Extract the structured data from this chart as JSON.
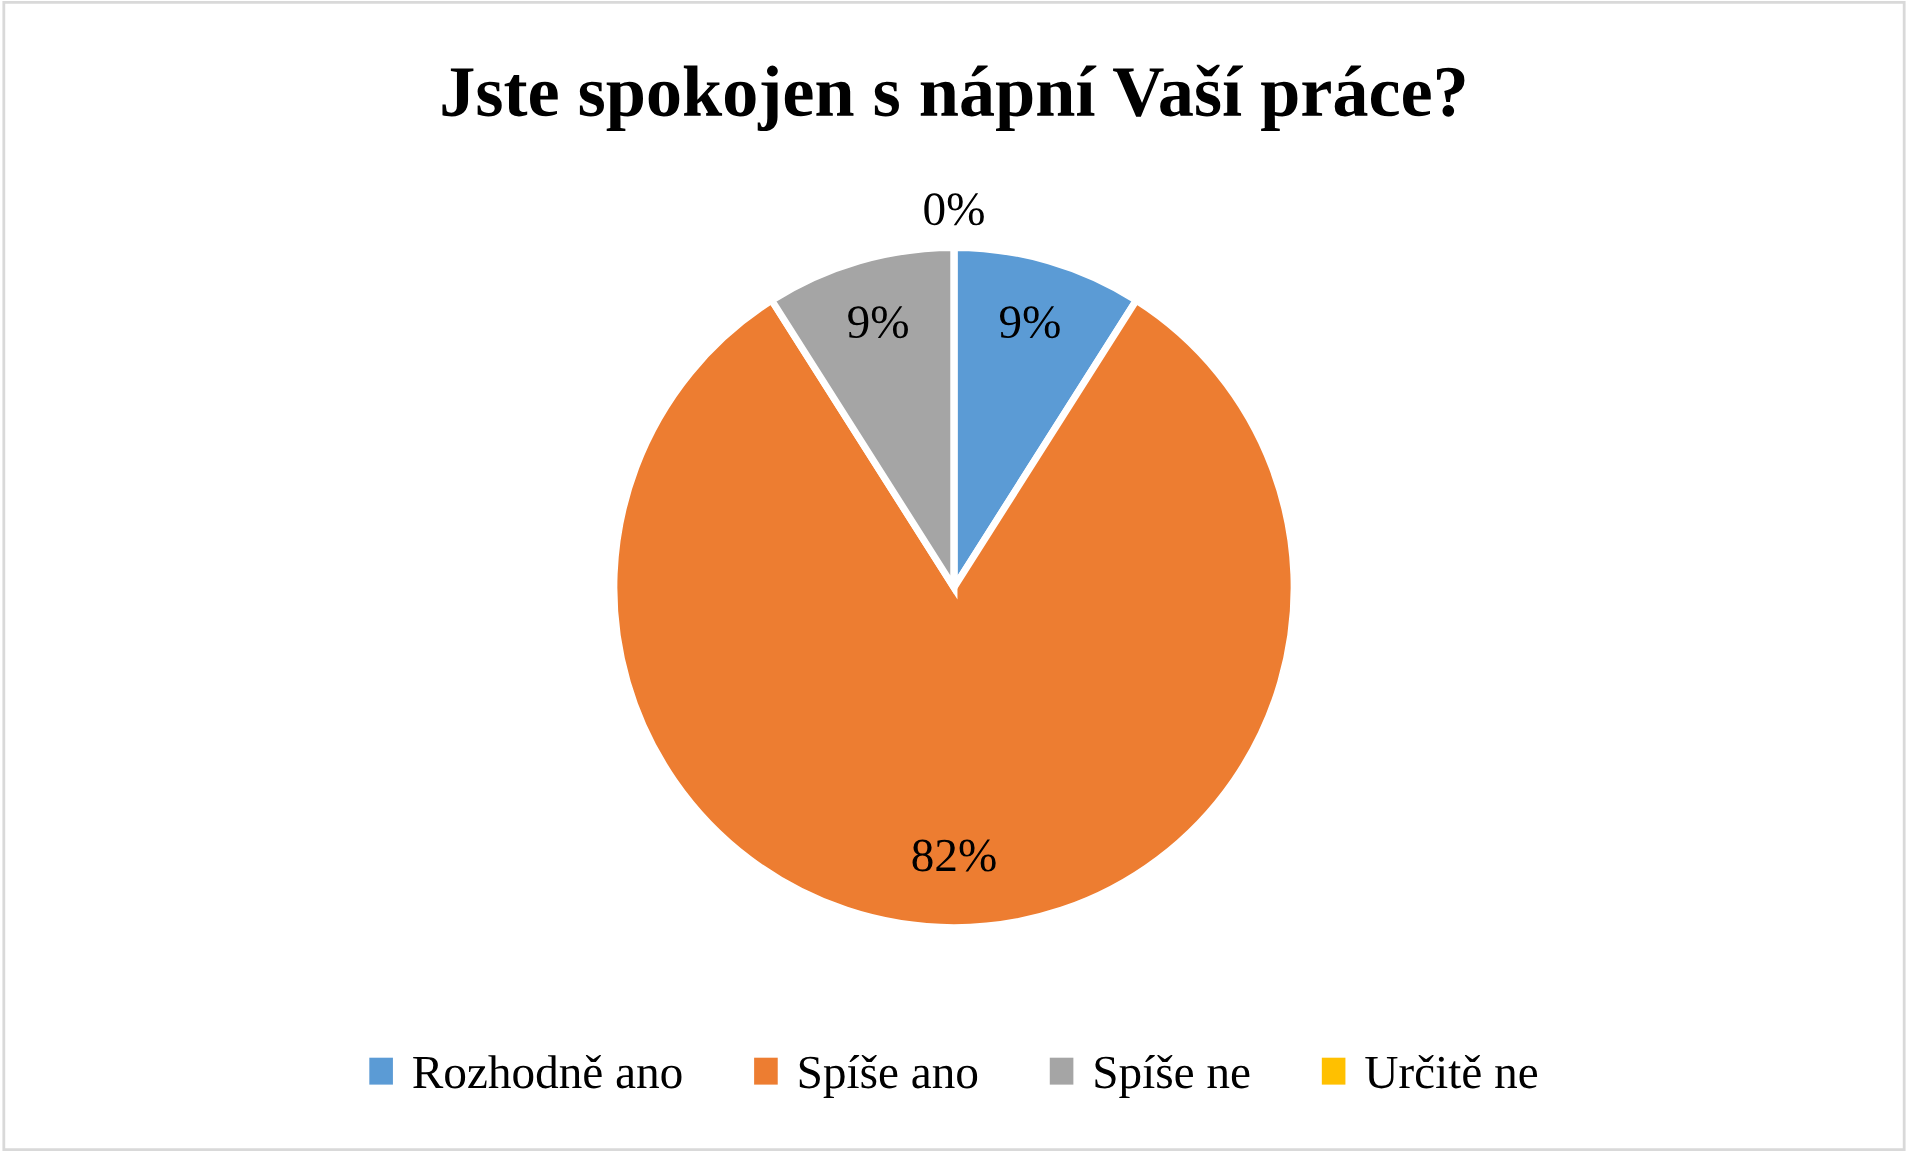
{
  "chart_data": {
    "type": "pie",
    "title": "Jste spokojen s nápní Vaší práce?",
    "categories": [
      "Rozhodně ano",
      "Spíše ano",
      "Spíše ne",
      "Určitě ne"
    ],
    "values": [
      9,
      82,
      9,
      0
    ],
    "value_labels": [
      "9%",
      "82%",
      "9%",
      "0%"
    ],
    "colors": [
      "#5b9bd5",
      "#ed7d31",
      "#a5a5a5",
      "#ffc000"
    ],
    "legend": "bottom"
  }
}
